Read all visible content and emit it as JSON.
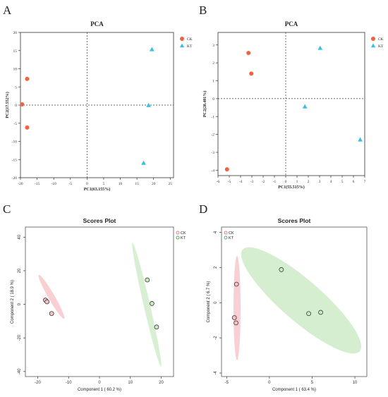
{
  "panel_labels": [
    "A",
    "B",
    "C",
    "D"
  ],
  "chart_data": [
    {
      "type": "scatter",
      "title": "PCA",
      "xlabel": "PC1(63.155%)",
      "ylabel": "PC2(17.552%)",
      "xlim": [
        -20,
        26
      ],
      "ylim": [
        -20,
        20
      ],
      "xticks": [
        -20,
        -15,
        -10,
        -5,
        0,
        5,
        10,
        15,
        20,
        25
      ],
      "yticks": [
        -20,
        -15,
        -10,
        -5,
        0,
        5,
        10,
        15,
        20
      ],
      "reference_lines": {
        "x": 0,
        "y": 0,
        "style": "dashed"
      },
      "legend": "top-right",
      "series": [
        {
          "name": "CK",
          "marker": "circle",
          "color": "#f0633e",
          "points": [
            [
              -18,
              7.2
            ],
            [
              -19.5,
              0.2
            ],
            [
              -18,
              -6.2
            ]
          ]
        },
        {
          "name": "KT",
          "marker": "triangle",
          "color": "#3bbfe0",
          "points": [
            [
              19.5,
              15.3
            ],
            [
              18.5,
              -0.1
            ],
            [
              17,
              -16
            ]
          ]
        }
      ]
    },
    {
      "type": "scatter",
      "title": "PCA",
      "xlabel": "PC1(55.515%)",
      "ylabel": "PC2(20.401%)",
      "xlim": [
        -6,
        7
      ],
      "ylim": [
        -4.3,
        3.7
      ],
      "xticks": [
        -6,
        -5,
        -4,
        -3,
        -2,
        -1,
        0,
        1,
        2,
        3,
        4,
        5,
        6,
        7
      ],
      "yticks": [
        -4,
        -3,
        -2,
        -1,
        0,
        1,
        2,
        3
      ],
      "reference_lines": {
        "x": 0,
        "y": 0,
        "style": "dashed"
      },
      "legend": "top-right",
      "series": [
        {
          "name": "CK",
          "marker": "circle",
          "color": "#f0633e",
          "points": [
            [
              -3.3,
              2.55
            ],
            [
              -3.05,
              1.4
            ],
            [
              -5.2,
              -3.95
            ]
          ]
        },
        {
          "name": "KT",
          "marker": "triangle",
          "color": "#3bbfe0",
          "points": [
            [
              3.05,
              2.82
            ],
            [
              1.7,
              -0.45
            ],
            [
              6.6,
              -2.3
            ]
          ]
        }
      ]
    },
    {
      "type": "scatter",
      "title": "Scores Plot",
      "xlabel": "Component 1 ( 60.2 %)",
      "ylabel": "Component 2 ( 18.9 %)",
      "xlim": [
        -24,
        24
      ],
      "ylim": [
        -43,
        46
      ],
      "xticks": [
        -20,
        -10,
        0,
        10,
        20
      ],
      "yticks": [
        -40,
        -20,
        0,
        20,
        40
      ],
      "legend": "top-right",
      "series": [
        {
          "name": "CK",
          "color": "#e45a6a",
          "fill": "#f6c0c4",
          "points": [
            [
              -17.5,
              2.5
            ],
            [
              -17,
              1.5
            ],
            [
              -15.5,
              -5.5
            ]
          ]
        },
        {
          "name": "KT",
          "color": "#2f9e3c",
          "fill": "#c7e8c0",
          "points": [
            [
              15.5,
              14.5
            ],
            [
              17,
              0.5
            ],
            [
              18.5,
              -13.5
            ]
          ]
        }
      ]
    },
    {
      "type": "scatter",
      "title": "Scores Plot",
      "xlabel": "Component 1 ( 63.4 %)",
      "ylabel": "Component 2 ( 6.7 %)",
      "xlim": [
        -5.6,
        11.4
      ],
      "ylim": [
        -4.2,
        4.3
      ],
      "xticks": [
        -5,
        0,
        5,
        10
      ],
      "yticks": [
        -4,
        -2,
        0,
        2,
        4
      ],
      "legend": "top-left",
      "series": [
        {
          "name": "CK",
          "color": "#e45a6a",
          "fill": "#f6c0c4",
          "points": [
            [
              -3.85,
              1.05
            ],
            [
              -4.1,
              -0.85
            ],
            [
              -3.9,
              -1.15
            ]
          ]
        },
        {
          "name": "KT",
          "color": "#2f9e3c",
          "fill": "#c7e8c0",
          "points": [
            [
              1.4,
              1.88
            ],
            [
              4.6,
              -0.62
            ],
            [
              6,
              -0.55
            ]
          ]
        }
      ]
    }
  ]
}
